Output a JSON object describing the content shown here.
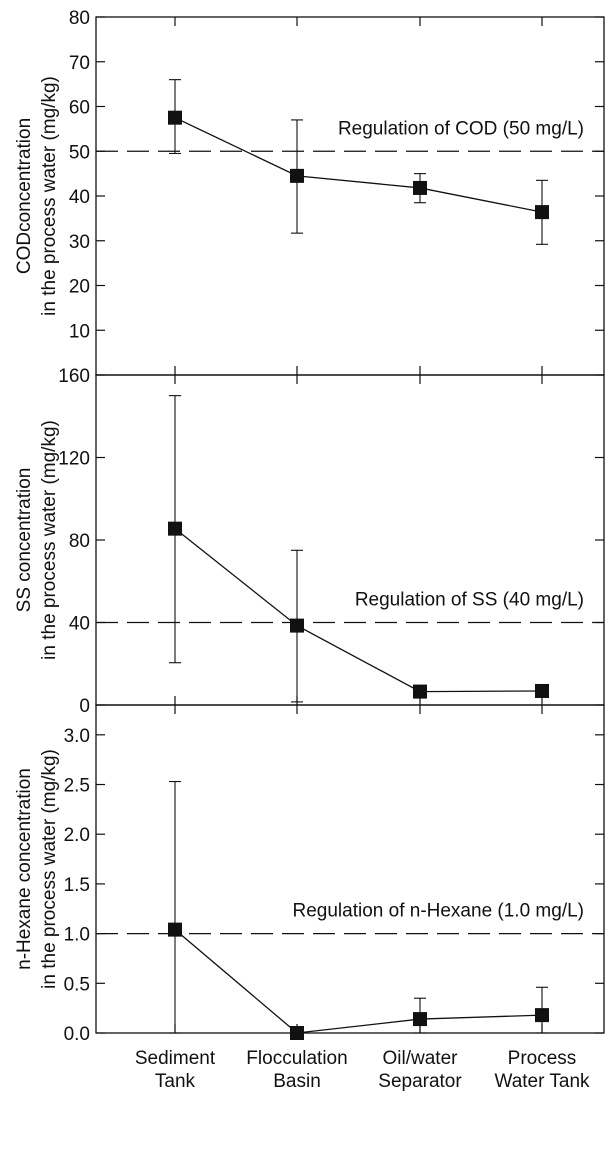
{
  "chart_data": [
    {
      "type": "line",
      "panel": "top",
      "categories": [
        "Sediment Tank",
        "Flocculation Basin",
        "Oil/water Separator",
        "Process Water Tank"
      ],
      "ylabel": [
        "CODconcentration",
        "in the process water (mg/kg)"
      ],
      "ylim": [
        0,
        80
      ],
      "yticks": [
        10,
        20,
        30,
        40,
        50,
        60,
        70,
        80
      ],
      "series": [
        {
          "values": [
            57.5,
            44.5,
            41.8,
            36.4
          ],
          "err_upper": [
            66,
            57,
            45,
            43.5
          ],
          "err_lower": [
            49.5,
            31.7,
            38.5,
            29.2
          ]
        }
      ],
      "reference_line": {
        "value": 50,
        "style": "dashed",
        "label": "Regulation of COD (50 mg/L)"
      }
    },
    {
      "type": "line",
      "panel": "middle",
      "categories": [
        "Sediment Tank",
        "Flocculation Basin",
        "Oil/water Separator",
        "Process Water Tank"
      ],
      "ylabel": [
        "SS concentration",
        "in the process water (mg/kg)"
      ],
      "ylim": [
        0,
        160
      ],
      "yticks": [
        0,
        40,
        80,
        120,
        160
      ],
      "series": [
        {
          "values": [
            85.5,
            38.5,
            6.5,
            6.8
          ],
          "err_upper": [
            150,
            75,
            9.5,
            8
          ],
          "err_lower": [
            20.5,
            1.5,
            4,
            6
          ]
        }
      ],
      "reference_line": {
        "value": 40,
        "style": "dashed",
        "label": "Regulation of SS (40 mg/L)"
      }
    },
    {
      "type": "line",
      "panel": "bottom",
      "categories": [
        "Sediment Tank",
        "Flocculation Basin",
        "Oil/water Separator",
        "Process Water Tank"
      ],
      "ylabel": [
        "n-Hexane concentration",
        "in the process water (mg/kg)"
      ],
      "ylim": [
        0,
        3.3
      ],
      "yticks": [
        0.0,
        0.5,
        1.0,
        1.5,
        2.0,
        2.5,
        3.0
      ],
      "series": [
        {
          "values": [
            1.04,
            0.0,
            0.14,
            0.18
          ],
          "err_upper": [
            2.53,
            0.0,
            0.35,
            0.46
          ],
          "err_lower": [
            0.0,
            0.0,
            0.0,
            0.0
          ]
        }
      ],
      "reference_line": {
        "value": 1.0,
        "style": "dashed",
        "label": "Regulation of n-Hexane (1.0 mg/L)"
      }
    }
  ],
  "xaxis": {
    "tick_labels": [
      [
        "Sediment",
        "Tank"
      ],
      [
        "Flocculation",
        "Basin"
      ],
      [
        "Oil/water",
        "Separator"
      ],
      [
        "Process",
        "Water Tank"
      ]
    ]
  },
  "tick_format": [
    {
      "decimals": 0
    },
    {
      "decimals": 0
    },
    {
      "decimals": 1
    }
  ]
}
